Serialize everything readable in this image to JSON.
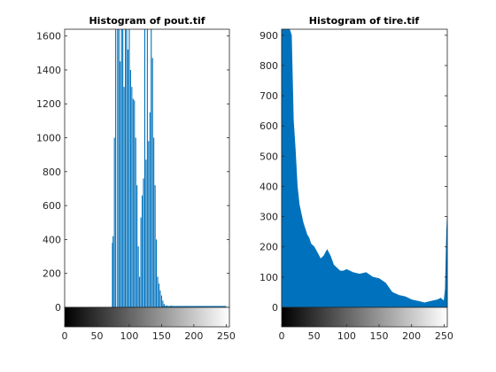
{
  "colors": {
    "bar": "#0072BD",
    "axis": "#262626",
    "background": "#ffffff"
  },
  "chart_data": [
    {
      "type": "bar",
      "title": "Histogram of pout.tif",
      "xlim": [
        0,
        255
      ],
      "ylim": [
        0,
        1640
      ],
      "xticks": [
        0,
        50,
        100,
        150,
        200,
        250
      ],
      "yticks": [
        0,
        200,
        400,
        600,
        800,
        1000,
        1200,
        1400,
        1600
      ],
      "colorbar": "grayscale 0-255",
      "bins": [
        {
          "x": 74,
          "y": 380
        },
        {
          "x": 75,
          "y": 420
        },
        {
          "x": 77,
          "y": 1000
        },
        {
          "x": 79,
          "y": 1640
        },
        {
          "x": 82,
          "y": 1640
        },
        {
          "x": 84,
          "y": 1640
        },
        {
          "x": 86,
          "y": 1450
        },
        {
          "x": 88,
          "y": 1640
        },
        {
          "x": 90,
          "y": 1640
        },
        {
          "x": 92,
          "y": 1300
        },
        {
          "x": 94,
          "y": 1640
        },
        {
          "x": 96,
          "y": 1640
        },
        {
          "x": 98,
          "y": 1520
        },
        {
          "x": 100,
          "y": 1640
        },
        {
          "x": 102,
          "y": 1400
        },
        {
          "x": 104,
          "y": 1300
        },
        {
          "x": 106,
          "y": 1230
        },
        {
          "x": 108,
          "y": 1220
        },
        {
          "x": 110,
          "y": 1000
        },
        {
          "x": 112,
          "y": 720
        },
        {
          "x": 114,
          "y": 360
        },
        {
          "x": 116,
          "y": 180
        },
        {
          "x": 118,
          "y": 530
        },
        {
          "x": 120,
          "y": 660
        },
        {
          "x": 122,
          "y": 760
        },
        {
          "x": 124,
          "y": 1640
        },
        {
          "x": 126,
          "y": 870
        },
        {
          "x": 128,
          "y": 1640
        },
        {
          "x": 130,
          "y": 980
        },
        {
          "x": 132,
          "y": 1150
        },
        {
          "x": 134,
          "y": 1640
        },
        {
          "x": 136,
          "y": 1470
        },
        {
          "x": 138,
          "y": 1000
        },
        {
          "x": 140,
          "y": 720
        },
        {
          "x": 142,
          "y": 400
        },
        {
          "x": 144,
          "y": 180
        },
        {
          "x": 146,
          "y": 140
        },
        {
          "x": 148,
          "y": 100
        },
        {
          "x": 150,
          "y": 70
        },
        {
          "x": 152,
          "y": 40
        },
        {
          "x": 154,
          "y": 20
        },
        {
          "x": 158,
          "y": 12
        },
        {
          "x": 165,
          "y": 10
        },
        {
          "x": 175,
          "y": 8
        },
        {
          "x": 185,
          "y": 6
        },
        {
          "x": 195,
          "y": 5
        },
        {
          "x": 210,
          "y": 4
        },
        {
          "x": 230,
          "y": 3
        }
      ]
    },
    {
      "type": "area",
      "title": "Histogram of tire.tif",
      "xlim": [
        0,
        255
      ],
      "ylim": [
        0,
        920
      ],
      "xticks": [
        0,
        50,
        100,
        150,
        200,
        250
      ],
      "yticks": [
        0,
        100,
        200,
        300,
        400,
        500,
        600,
        700,
        800,
        900
      ],
      "colorbar": "grayscale 0-255",
      "x": [
        0,
        3,
        6,
        9,
        12,
        15,
        18,
        21,
        24,
        27,
        30,
        33,
        36,
        39,
        42,
        45,
        50,
        55,
        60,
        65,
        70,
        75,
        80,
        85,
        90,
        95,
        100,
        110,
        120,
        130,
        140,
        150,
        160,
        165,
        170,
        180,
        190,
        200,
        210,
        220,
        230,
        240,
        245,
        250,
        252,
        254,
        255
      ],
      "values": [
        920,
        920,
        920,
        920,
        920,
        900,
        620,
        520,
        400,
        340,
        310,
        280,
        260,
        240,
        230,
        210,
        200,
        180,
        160,
        170,
        190,
        170,
        140,
        130,
        120,
        120,
        125,
        115,
        110,
        115,
        100,
        95,
        80,
        65,
        50,
        40,
        35,
        25,
        20,
        15,
        20,
        25,
        30,
        20,
        60,
        250,
        300
      ]
    }
  ]
}
